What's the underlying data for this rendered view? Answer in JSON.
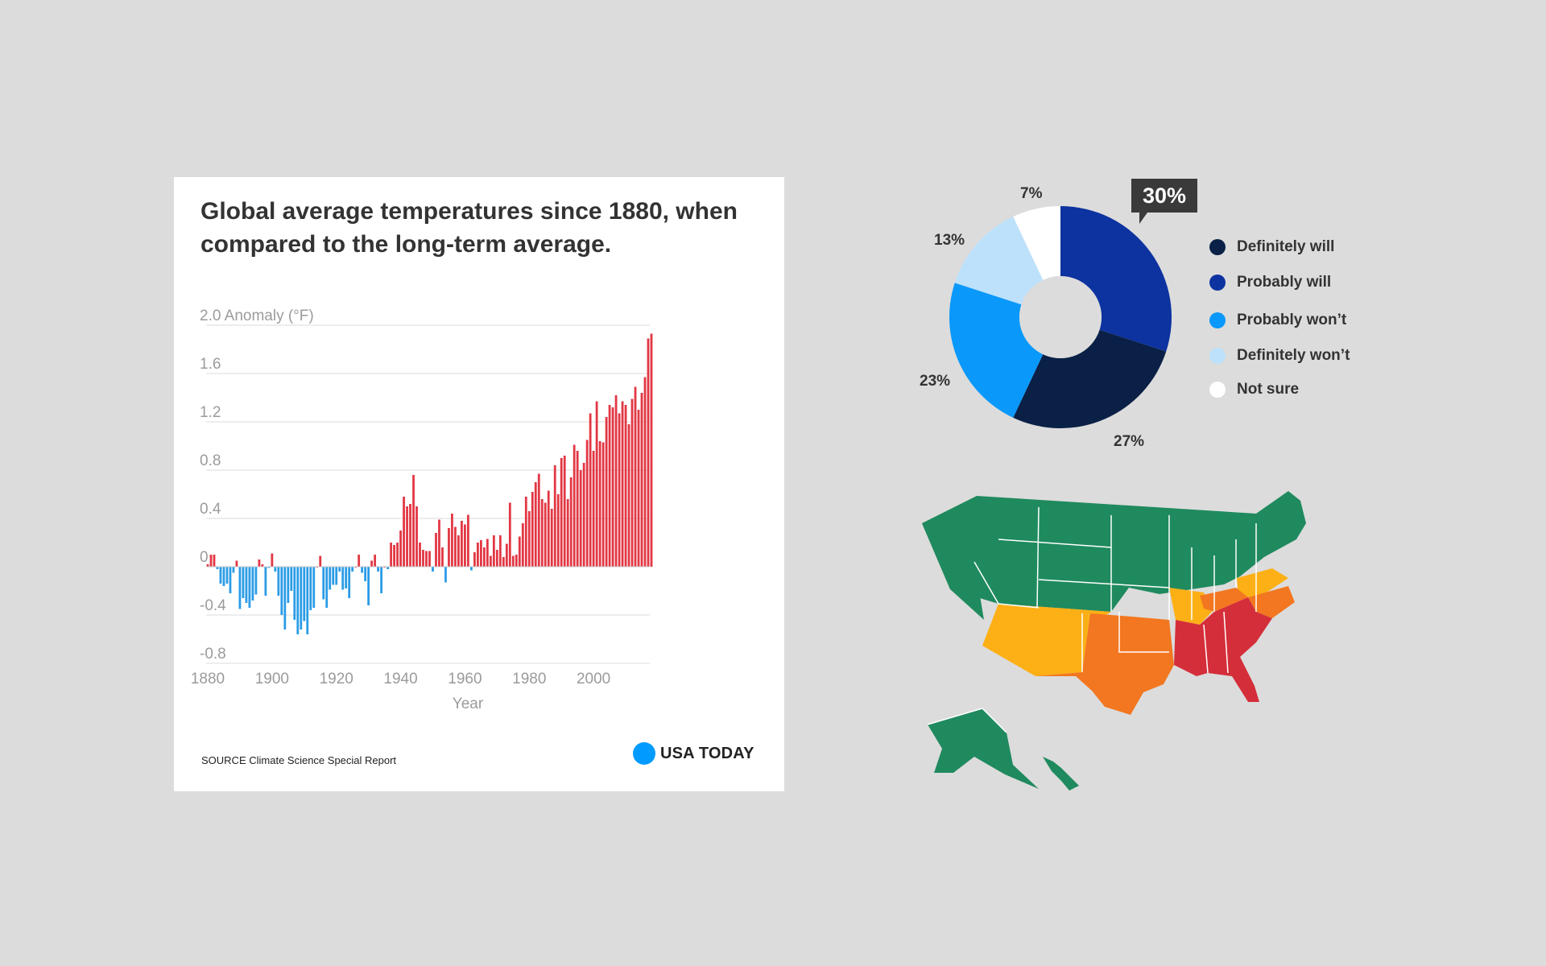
{
  "bar_chart": {
    "title": "Global average temperatures since 1880, when compared to the long-term average.",
    "source": "SOURCE Climate Science Special Report",
    "logo_text": "USA TODAY"
  },
  "colors": {
    "positive_bar": "#e23744",
    "negative_bar": "#2b9ce6",
    "definitely_will": "#0a2046",
    "probably_will": "#0d33a0",
    "probably_wont": "#0a98fb",
    "definitely_wont": "#bde1fb",
    "not_sure": "#ffffff",
    "map_green": "#1f8a5e",
    "map_yellow": "#fdb016",
    "map_orange": "#f27720",
    "map_red": "#d42e3a"
  },
  "chart_data": [
    {
      "type": "bar",
      "title": "Global average temperatures since 1880, when compared to the long-term average.",
      "ylabel": "Anomaly (°F)",
      "xlabel": "Year",
      "ylim": [
        -0.8,
        2.0
      ],
      "yticks": [
        "2.0 Anomaly (°F)",
        "1.6",
        "1.2",
        "0.8",
        "0.4",
        "0",
        "-0.4",
        "-0.8"
      ],
      "ytick_values": [
        2.0,
        1.6,
        1.2,
        0.8,
        0.4,
        0,
        -0.4,
        -0.8
      ],
      "xticks": [
        "1880",
        "1900",
        "1920",
        "1940",
        "1960",
        "1980",
        "2000"
      ],
      "xtick_values": [
        1880,
        1900,
        1920,
        1940,
        1960,
        1980,
        2000
      ],
      "grid": true,
      "x_start": 1880,
      "values": [
        0.02,
        0.1,
        0.1,
        -0.02,
        -0.14,
        -0.16,
        -0.14,
        -0.22,
        -0.05,
        0.05,
        -0.35,
        -0.26,
        -0.3,
        -0.34,
        -0.28,
        -0.23,
        0.06,
        0.02,
        -0.24,
        -0.01,
        0.11,
        -0.04,
        -0.24,
        -0.4,
        -0.52,
        -0.3,
        -0.2,
        -0.44,
        -0.56,
        -0.52,
        -0.45,
        -0.56,
        -0.36,
        -0.34,
        0.0,
        0.09,
        -0.27,
        -0.34,
        -0.19,
        -0.15,
        -0.15,
        -0.04,
        -0.19,
        -0.18,
        -0.26,
        -0.04,
        0.0,
        0.1,
        -0.05,
        -0.12,
        -0.32,
        0.05,
        0.1,
        -0.04,
        -0.22,
        0.0,
        -0.02,
        0.2,
        0.18,
        0.2,
        0.3,
        0.58,
        0.5,
        0.52,
        0.76,
        0.5,
        0.2,
        0.14,
        0.13,
        0.13,
        -0.04,
        0.28,
        0.39,
        0.16,
        -0.13,
        0.32,
        0.44,
        0.33,
        0.26,
        0.38,
        0.35,
        0.43,
        -0.03,
        0.12,
        0.2,
        0.22,
        0.16,
        0.23,
        0.09,
        0.26,
        0.14,
        0.26,
        0.08,
        0.19,
        0.53,
        0.09,
        0.1,
        0.25,
        0.36,
        0.58,
        0.46,
        0.62,
        0.7,
        0.77,
        0.56,
        0.53,
        0.63,
        0.48,
        0.84,
        0.6,
        0.9,
        0.92,
        0.56,
        0.74,
        1.01,
        0.96,
        0.8,
        0.86,
        1.05,
        1.27,
        0.96,
        1.37,
        1.04,
        1.03,
        1.24,
        1.34,
        1.32,
        1.42,
        1.27,
        1.37,
        1.34,
        1.18,
        1.39,
        1.49,
        1.3,
        1.44,
        1.57,
        1.89,
        1.93
      ]
    },
    {
      "type": "pie",
      "categories": [
        "Probably will",
        "Definitely will",
        "Probably won’t",
        "Definitely won’t",
        "Not sure"
      ],
      "values": [
        30,
        27,
        23,
        13,
        7
      ],
      "labels": [
        "30%",
        "27%",
        "23%",
        "13%",
        "7%"
      ]
    }
  ],
  "donut": {
    "callout": "30%",
    "legend": [
      "Definitely will",
      "Probably will",
      "Probably won’t",
      "Definitely won’t",
      "Not sure"
    ]
  },
  "map": {
    "categories_colors": [
      "#1f8a5e",
      "#fdb016",
      "#f27720",
      "#d42e3a"
    ]
  }
}
